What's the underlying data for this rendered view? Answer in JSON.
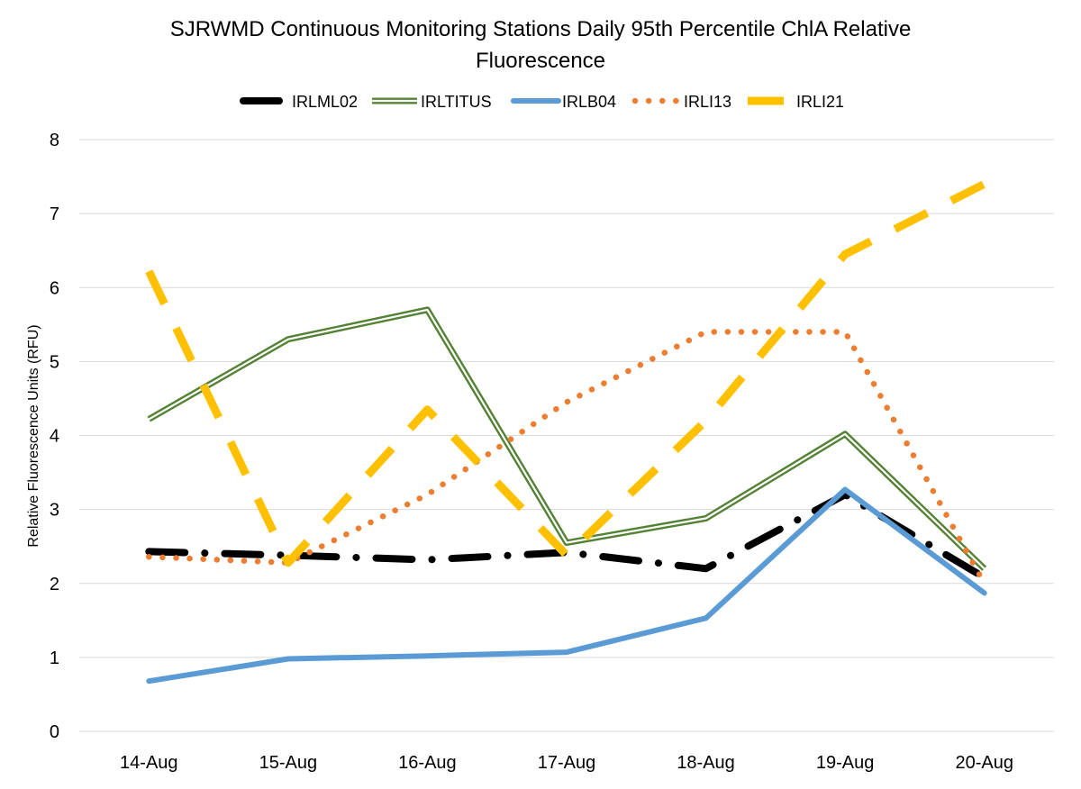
{
  "chart_data": {
    "type": "line",
    "title_lines": [
      "SJRWMD Continuous Monitoring Stations Daily 95th Percentile ChlA Relative",
      "Fluorescence"
    ],
    "xlabel": "",
    "ylabel": "Relative Fluorescence Units (RFU)",
    "ylim": [
      0,
      8
    ],
    "yticks": [
      "0",
      "1",
      "2",
      "3",
      "4",
      "5",
      "6",
      "7",
      "8"
    ],
    "grid": true,
    "legend_position": "top",
    "categories": [
      "14-Aug",
      "15-Aug",
      "16-Aug",
      "17-Aug",
      "18-Aug",
      "19-Aug",
      "20-Aug"
    ],
    "series": [
      {
        "name": "IRLML02",
        "style": "dash-dot",
        "color": "#000000",
        "values": [
          2.43,
          2.38,
          2.32,
          2.42,
          2.2,
          3.2,
          2.08
        ]
      },
      {
        "name": "IRLTITUS",
        "style": "double",
        "color": "#548235",
        "values": [
          4.22,
          5.3,
          5.7,
          2.55,
          2.88,
          4.02,
          2.2
        ]
      },
      {
        "name": "IRLB04",
        "style": "solid",
        "color": "#5B9BD5",
        "values": [
          0.68,
          0.98,
          1.02,
          1.07,
          1.53,
          3.27,
          1.87
        ]
      },
      {
        "name": "IRLI13",
        "style": "dotted",
        "color": "#ED7D31",
        "values": [
          2.36,
          2.28,
          3.2,
          4.45,
          5.4,
          5.4,
          2.0
        ]
      },
      {
        "name": "IRLI21",
        "style": "long-dash",
        "color": "#FFC000",
        "values": [
          6.22,
          2.28,
          4.35,
          2.38,
          4.2,
          6.45,
          7.4
        ]
      }
    ]
  }
}
